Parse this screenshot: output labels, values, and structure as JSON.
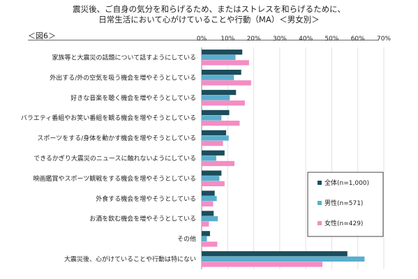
{
  "header": {
    "title_line1": "震災後、ご自身の気分を和らげるため、またはストレスを和らげるために、",
    "title_line2": "日常生活において心がけていることや行動（MA）＜男女別＞",
    "figure_label": "＜図6＞"
  },
  "chart_data": {
    "type": "bar",
    "orientation": "horizontal",
    "xlim": [
      0,
      70
    ],
    "x_ticks": [
      "0%",
      "10%",
      "20%",
      "30%",
      "40%",
      "50%",
      "60%",
      "70%"
    ],
    "grid": true,
    "legend_position": "right",
    "categories": [
      "家族等と大震災の話題について話すようにしている",
      "外出する/外の空気を吸う機会を増やそうとしている",
      "好きな音楽を聴く機会を増やそうとしている",
      "バラエティ番組やお笑い番組を観る機会を増やそうとしている",
      "スポーツをする/身体を動かす機会を増やそうとしている",
      "できるかぎり大震災のニュースに触れないようにしている",
      "映画鑑賞やスポーツ観戦をする機会を増やそうとしている",
      "外食する機会を増やそうとしている",
      "お酒を飲む機会を増やそうとしている",
      "その他",
      "大震災後、心がけていることや行動は特にない"
    ],
    "series": [
      {
        "name": "全体(n=1,000)",
        "color": "#1b4d5c",
        "values": [
          15.6,
          15.2,
          13.2,
          10.6,
          9.4,
          8.8,
          7.6,
          5.0,
          4.6,
          3.2,
          56.0
        ]
      },
      {
        "name": "男性(n=571)",
        "color": "#5aaecd",
        "values": [
          13.0,
          12.4,
          10.8,
          7.6,
          10.4,
          5.6,
          6.8,
          5.8,
          6.2,
          2.0,
          62.6
        ]
      },
      {
        "name": "女性(n=429)",
        "color": "#f58cc4",
        "values": [
          18.2,
          19.0,
          16.6,
          14.6,
          8.2,
          12.6,
          8.8,
          4.4,
          2.8,
          6.0,
          46.4
        ]
      }
    ]
  }
}
